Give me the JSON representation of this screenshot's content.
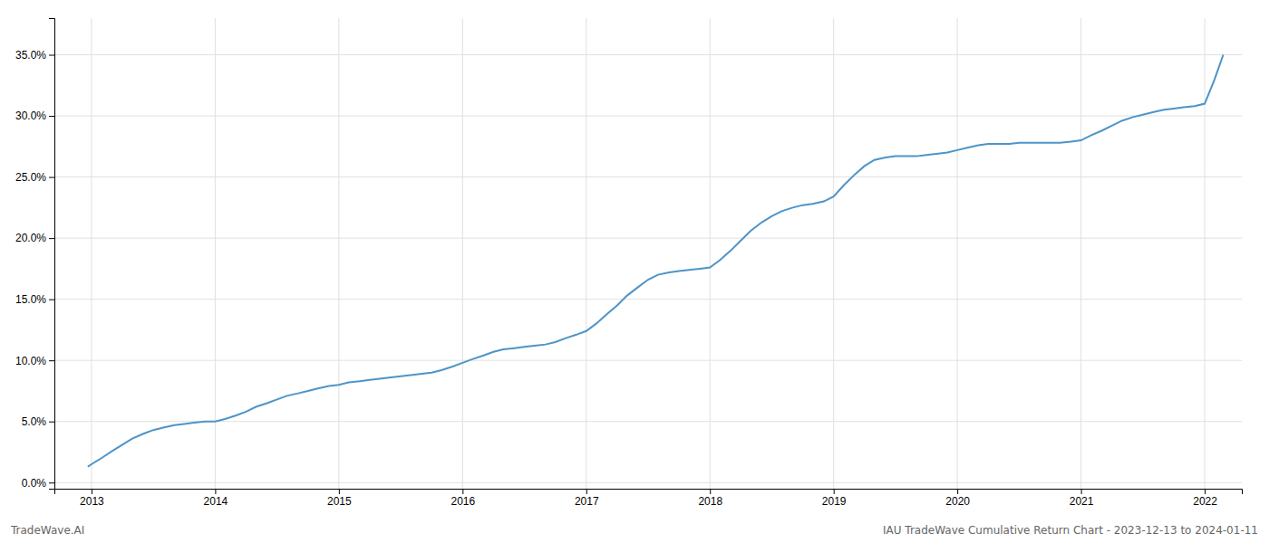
{
  "chart_data": {
    "type": "line",
    "x": [
      2012.97,
      2013.0,
      2013.08,
      2013.17,
      2013.25,
      2013.33,
      2013.42,
      2013.5,
      2013.58,
      2013.67,
      2013.75,
      2013.83,
      2013.92,
      2014.0,
      2014.08,
      2014.17,
      2014.25,
      2014.33,
      2014.42,
      2014.5,
      2014.58,
      2014.67,
      2014.75,
      2014.83,
      2014.92,
      2015.0,
      2015.08,
      2015.17,
      2015.25,
      2015.33,
      2015.42,
      2015.5,
      2015.58,
      2015.67,
      2015.75,
      2015.83,
      2015.92,
      2016.0,
      2016.08,
      2016.17,
      2016.25,
      2016.33,
      2016.42,
      2016.5,
      2016.58,
      2016.67,
      2016.75,
      2016.83,
      2016.92,
      2017.0,
      2017.08,
      2017.17,
      2017.25,
      2017.33,
      2017.42,
      2017.5,
      2017.58,
      2017.67,
      2017.75,
      2017.83,
      2017.92,
      2018.0,
      2018.08,
      2018.17,
      2018.25,
      2018.33,
      2018.42,
      2018.5,
      2018.58,
      2018.67,
      2018.75,
      2018.83,
      2018.92,
      2019.0,
      2019.08,
      2019.17,
      2019.25,
      2019.33,
      2019.42,
      2019.5,
      2019.58,
      2019.67,
      2019.75,
      2019.83,
      2019.92,
      2020.0,
      2020.08,
      2020.17,
      2020.25,
      2020.33,
      2020.42,
      2020.5,
      2020.58,
      2020.67,
      2020.75,
      2020.83,
      2020.92,
      2021.0,
      2021.08,
      2021.17,
      2021.25,
      2021.33,
      2021.42,
      2021.5,
      2021.58,
      2021.67,
      2021.75,
      2021.83,
      2021.92,
      2022.0,
      2022.08,
      2022.15
    ],
    "values": [
      0.013,
      0.015,
      0.02,
      0.026,
      0.031,
      0.036,
      0.04,
      0.043,
      0.045,
      0.047,
      0.048,
      0.049,
      0.05,
      0.05,
      0.052,
      0.055,
      0.058,
      0.062,
      0.065,
      0.068,
      0.071,
      0.073,
      0.075,
      0.077,
      0.079,
      0.08,
      0.082,
      0.083,
      0.084,
      0.085,
      0.086,
      0.087,
      0.088,
      0.089,
      0.09,
      0.092,
      0.095,
      0.098,
      0.101,
      0.104,
      0.107,
      0.109,
      0.11,
      0.111,
      0.112,
      0.113,
      0.115,
      0.118,
      0.121,
      0.124,
      0.13,
      0.138,
      0.145,
      0.153,
      0.16,
      0.166,
      0.17,
      0.172,
      0.173,
      0.174,
      0.175,
      0.176,
      0.182,
      0.19,
      0.198,
      0.206,
      0.213,
      0.218,
      0.222,
      0.225,
      0.227,
      0.228,
      0.23,
      0.234,
      0.243,
      0.252,
      0.259,
      0.264,
      0.266,
      0.267,
      0.267,
      0.267,
      0.268,
      0.269,
      0.27,
      0.272,
      0.274,
      0.276,
      0.277,
      0.277,
      0.277,
      0.278,
      0.278,
      0.278,
      0.278,
      0.278,
      0.279,
      0.28,
      0.284,
      0.288,
      0.292,
      0.296,
      0.299,
      0.301,
      0.303,
      0.305,
      0.306,
      0.307,
      0.308,
      0.31,
      0.33,
      0.35
    ],
    "color": "#4d94c8",
    "xlim": [
      2012.7,
      2022.3
    ],
    "xticks": [
      2013,
      2014,
      2015,
      2016,
      2017,
      2018,
      2019,
      2020,
      2021,
      2022
    ],
    "ylim": [
      -0.005,
      0.38
    ],
    "yticks": [
      {
        "value": 0.0,
        "label": "0.0%"
      },
      {
        "value": 0.05,
        "label": "5.0%"
      },
      {
        "value": 0.1,
        "label": "10.0%"
      },
      {
        "value": 0.15,
        "label": "15.0%"
      },
      {
        "value": 0.2,
        "label": "20.0%"
      },
      {
        "value": 0.25,
        "label": "25.0%"
      },
      {
        "value": 0.3,
        "label": "30.0%"
      },
      {
        "value": 0.35,
        "label": "35.0%"
      }
    ],
    "grid": true,
    "annotations": [
      "TradeWave.AI",
      "IAU TradeWave Cumulative Return Chart - 2023-12-13 to 2024-01-11"
    ]
  }
}
